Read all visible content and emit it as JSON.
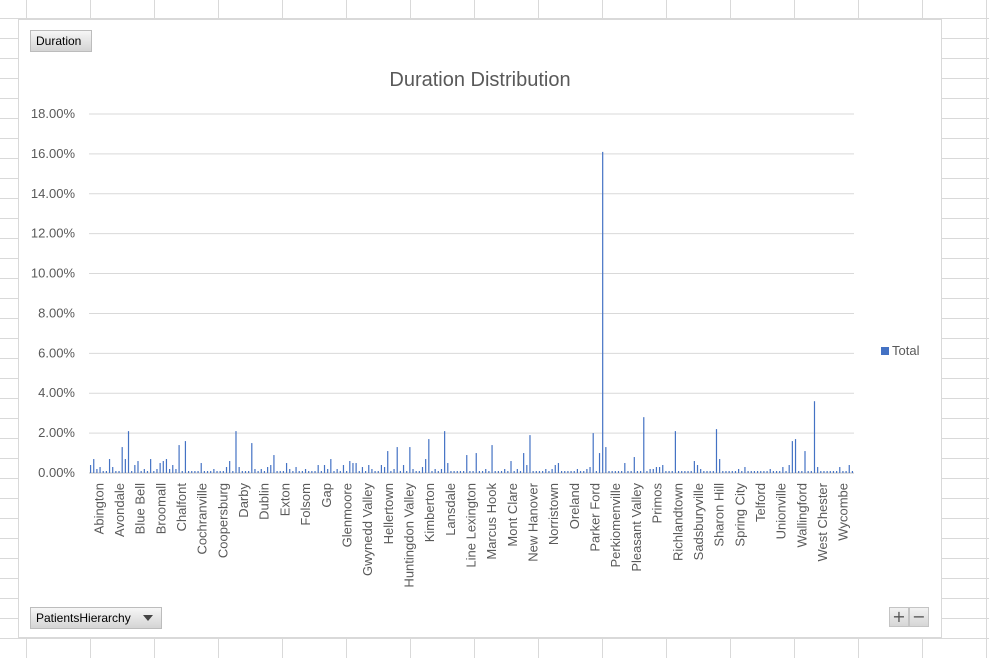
{
  "buttons": {
    "duration": "Duration",
    "hierarchy": "PatientsHierarchy",
    "zoom_in": "+",
    "zoom_out": "−"
  },
  "chart_data": {
    "type": "bar",
    "title": "Duration Distribution",
    "xlabel": "",
    "ylabel": "",
    "ylim": [
      0,
      0.18
    ],
    "yticks": [
      0,
      0.02,
      0.04,
      0.06,
      0.08,
      0.1,
      0.12,
      0.14,
      0.16,
      0.18
    ],
    "ytick_labels": [
      "0.00%",
      "2.00%",
      "4.00%",
      "6.00%",
      "8.00%",
      "10.00%",
      "12.00%",
      "14.00%",
      "16.00%",
      "18.00%"
    ],
    "grid": true,
    "legend_position": "right",
    "tick_labels": [
      "Abington",
      "Avondale",
      "Blue Bell",
      "Broomall",
      "Chalfont",
      "Cochranville",
      "Coopersburg",
      "Darby",
      "Dublin",
      "Exton",
      "Folsom",
      "Gap",
      "Glenmoore",
      "Gwynedd Valley",
      "Hellertown",
      "Huntingdon Valley",
      "Kimberton",
      "Lansdale",
      "Line Lexington",
      "Marcus Hook",
      "Mont Clare",
      "New Hanover",
      "Norristown",
      "Oreland",
      "Parker Ford",
      "Perkiomenville",
      "Pleasant Valley",
      "Primos",
      "Richlandtown",
      "Sadsburyville",
      "Sharon Hill",
      "Spring City",
      "Telford",
      "Unionville",
      "Wallingford",
      "West Chester",
      "Wycombe"
    ],
    "series": [
      {
        "name": "Total",
        "color": "#4472c4",
        "values": [
          0.004,
          0.007,
          0.002,
          0.003,
          0.001,
          0.001,
          0.007,
          0.003,
          0.001,
          0.001,
          0.013,
          0.007,
          0.021,
          0.001,
          0.004,
          0.006,
          0.001,
          0.002,
          0.001,
          0.007,
          0.001,
          0.002,
          0.005,
          0.006,
          0.007,
          0.002,
          0.004,
          0.002,
          0.014,
          0.001,
          0.016,
          0.001,
          0.001,
          0.001,
          0.001,
          0.005,
          0.001,
          0.001,
          0.001,
          0.002,
          0.001,
          0.001,
          0.001,
          0.003,
          0.006,
          0.001,
          0.021,
          0.003,
          0.001,
          0.001,
          0.001,
          0.015,
          0.002,
          0.001,
          0.002,
          0.001,
          0.003,
          0.004,
          0.009,
          0.001,
          0.001,
          0.001,
          0.005,
          0.002,
          0.001,
          0.003,
          0.001,
          0.001,
          0.002,
          0.001,
          0.001,
          0.001,
          0.004,
          0.001,
          0.004,
          0.002,
          0.007,
          0.001,
          0.002,
          0.001,
          0.004,
          0.001,
          0.006,
          0.005,
          0.005,
          0.001,
          0.003,
          0.001,
          0.004,
          0.002,
          0.001,
          0.001,
          0.004,
          0.003,
          0.011,
          0.001,
          0.002,
          0.013,
          0.001,
          0.004,
          0.001,
          0.013,
          0.002,
          0.001,
          0.001,
          0.003,
          0.007,
          0.017,
          0.001,
          0.002,
          0.001,
          0.002,
          0.021,
          0.005,
          0.001,
          0.001,
          0.001,
          0.001,
          0.001,
          0.009,
          0.001,
          0.001,
          0.01,
          0.001,
          0.001,
          0.002,
          0.001,
          0.014,
          0.001,
          0.001,
          0.001,
          0.002,
          0.001,
          0.006,
          0.001,
          0.002,
          0.001,
          0.01,
          0.004,
          0.019,
          0.001,
          0.001,
          0.001,
          0.001,
          0.002,
          0.001,
          0.002,
          0.004,
          0.005,
          0.001,
          0.001,
          0.001,
          0.001,
          0.001,
          0.002,
          0.001,
          0.001,
          0.002,
          0.003,
          0.02,
          0.001,
          0.01,
          0.161,
          0.013,
          0.001,
          0.001,
          0.001,
          0.001,
          0.001,
          0.005,
          0.001,
          0.001,
          0.008,
          0.001,
          0.001,
          0.028,
          0.001,
          0.002,
          0.002,
          0.003,
          0.003,
          0.004,
          0.001,
          0.001,
          0.001,
          0.021,
          0.001,
          0.001,
          0.001,
          0.001,
          0.001,
          0.006,
          0.004,
          0.002,
          0.001,
          0.001,
          0.001,
          0.001,
          0.022,
          0.007,
          0.001,
          0.001,
          0.001,
          0.001,
          0.001,
          0.002,
          0.001,
          0.003,
          0.001,
          0.001,
          0.001,
          0.001,
          0.001,
          0.001,
          0.001,
          0.002,
          0.001,
          0.001,
          0.001,
          0.003,
          0.001,
          0.004,
          0.016,
          0.017,
          0.001,
          0.001,
          0.011,
          0.001,
          0.001,
          0.036,
          0.003,
          0.001,
          0.001,
          0.001,
          0.001,
          0.001,
          0.001,
          0.003,
          0.001,
          0.001,
          0.004,
          0.001
        ]
      }
    ]
  }
}
